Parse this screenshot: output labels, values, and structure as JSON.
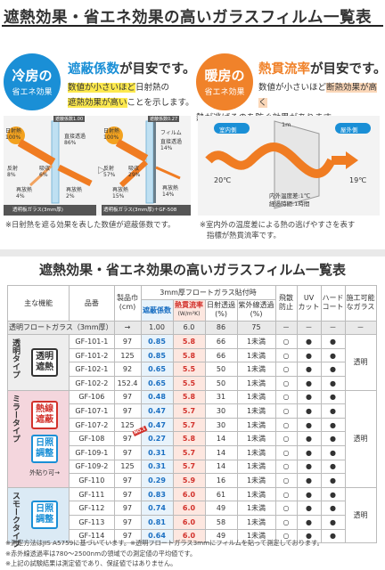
{
  "page_title": "遮熱効果・省エネ効果の高いガラスフィルム一覧表",
  "cooling": {
    "circle_main": "冷房の",
    "circle_sub": "省エネ効果",
    "heading_accent": "遮蔽係数",
    "heading_rest": "が目安です。",
    "line1_a": "数値が小さいほど",
    "line1_b": "日射熱の",
    "line2_a": "遮熱効果が高い",
    "line2_b": "ことを示します。",
    "note": "※日射熱を遮る効果を表した数値が遮蔽係数です。",
    "diagram_left": {
      "label": "遮蔽係数1.00",
      "in": "日射熱\n100%",
      "transmit": "直接透過\n86%",
      "reflect": "反射\n8%",
      "absorb": "吸収\n6%",
      "reradiate_in": "再放熱\n4%",
      "reradiate_out": "再放熱\n2%",
      "caption": "透明板ガラス(3mm厚)"
    },
    "diagram_right": {
      "label": "遮蔽係数0.27",
      "film": "フィルム",
      "in": "日射熱\n100%",
      "transmit": "直接透過\n14%",
      "reflect": "反射\n57%",
      "absorb": "吸収\n29%",
      "reradiate_in": "再放熱\n15%",
      "reradiate_out": "再放熱\n14%",
      "caption": "透明板ガラス(3mm厚)＋GF-508"
    }
  },
  "heating": {
    "circle_main": "暖房の",
    "circle_sub": "省エネ効果",
    "heading_accent": "熱貫流率",
    "heading_rest": "が目安です。",
    "line1_a": "数値が小さいほど",
    "line1_b": "断熱効果が高く",
    "line2": "熱が逃げるのを防ぐ効果があります。",
    "indoor": "室内側",
    "outdoor": "屋外側",
    "dim": "1m",
    "temp_in": "20℃",
    "temp_out": "19℃",
    "diff_line1": "内外温度差:1℃",
    "diff_line2": "経過時間:1時間",
    "note1": "※室内外の温度差による熱の逃げやすさを表す",
    "note2": "指標が熱貫流率です。"
  },
  "table": {
    "title": "遮熱効果・省エネ効果の高いガラスフィルム一覧表",
    "headers": {
      "function": "主な機能",
      "product": "品番",
      "width": "製品巾",
      "width_unit": "(cm)",
      "group": "3mm厚フロートガラス貼付時",
      "shading": "遮蔽係数",
      "u_value": "熱貫流率",
      "u_unit": "(W/m²K)",
      "solar": "日射透過",
      "solar_unit": "(%)",
      "uv": "紫外線透過",
      "uv_unit": "(%)",
      "shatter": "飛散\n防止",
      "uvcut": "UV\nカット",
      "hardcoat": "ハード\nコート",
      "glass": "施工可能\nなガラス"
    },
    "reference": {
      "label": "透明フロートガラス（3mm厚）",
      "arrow": "→",
      "shading": "1.00",
      "u_value": "6.0",
      "solar": "86",
      "uv": "75",
      "shatter": "－",
      "uvcut": "－",
      "hardcoat": "－",
      "glass": "－"
    },
    "groups": [
      {
        "name": "透明タイプ",
        "tags": [
          "透明遮熱"
        ],
        "glass": "透明"
      },
      {
        "name": "ミラータイプ",
        "tags": [
          "熱線遮蔽",
          "日照調整"
        ],
        "outer_note": "外貼り可→",
        "glass": "透明"
      },
      {
        "name": "スモークタイプ",
        "tags": [
          "日照調整"
        ],
        "glass": "透明"
      }
    ],
    "rows": [
      {
        "id": "GF-101-1",
        "w": "97",
        "sc": "0.85",
        "u": "5.8",
        "solar": "66",
        "uv": "1未満",
        "a": "○",
        "b": "●",
        "c": "●"
      },
      {
        "id": "GF-101-2",
        "w": "125",
        "sc": "0.85",
        "u": "5.8",
        "solar": "66",
        "uv": "1未満",
        "a": "○",
        "b": "●",
        "c": "●"
      },
      {
        "id": "GF-102-1",
        "w": "92",
        "sc": "0.65",
        "u": "5.5",
        "solar": "50",
        "uv": "1未満",
        "a": "○",
        "b": "●",
        "c": "●"
      },
      {
        "id": "GF-102-2",
        "w": "152.4",
        "sc": "0.65",
        "u": "5.5",
        "solar": "50",
        "uv": "1未満",
        "a": "○",
        "b": "●",
        "c": "●"
      },
      {
        "id": "GF-106",
        "w": "97",
        "sc": "0.48",
        "u": "5.8",
        "solar": "31",
        "uv": "1未満",
        "a": "○",
        "b": "●",
        "c": "●"
      },
      {
        "id": "GF-107-1",
        "w": "97",
        "sc": "0.47",
        "u": "5.7",
        "solar": "30",
        "uv": "1未満",
        "a": "○",
        "b": "●",
        "c": "●"
      },
      {
        "id": "GF-107-2",
        "w": "125",
        "sc": "0.47",
        "u": "5.7",
        "solar": "30",
        "uv": "1未満",
        "a": "○",
        "b": "●",
        "c": "●"
      },
      {
        "id": "GF-108",
        "w": "97",
        "sc": "0.27",
        "u": "5.8",
        "solar": "14",
        "uv": "1未満",
        "a": "○",
        "b": "●",
        "c": "●",
        "badge": "NO.1"
      },
      {
        "id": "GF-109-1",
        "w": "97",
        "sc": "0.31",
        "u": "5.7",
        "solar": "14",
        "uv": "1未満",
        "a": "○",
        "b": "●",
        "c": "●"
      },
      {
        "id": "GF-109-2",
        "w": "125",
        "sc": "0.31",
        "u": "5.7",
        "solar": "14",
        "uv": "1未満",
        "a": "○",
        "b": "●",
        "c": "●"
      },
      {
        "id": "GF-110",
        "w": "97",
        "sc": "0.29",
        "u": "5.9",
        "solar": "16",
        "uv": "1未満",
        "a": "○",
        "b": "●",
        "c": "●"
      },
      {
        "id": "GF-111",
        "w": "97",
        "sc": "0.83",
        "u": "6.0",
        "solar": "61",
        "uv": "1未満",
        "a": "○",
        "b": "●",
        "c": "●"
      },
      {
        "id": "GF-112",
        "w": "97",
        "sc": "0.74",
        "u": "6.0",
        "solar": "49",
        "uv": "1未満",
        "a": "○",
        "b": "●",
        "c": "●"
      },
      {
        "id": "GF-113",
        "w": "97",
        "sc": "0.81",
        "u": "6.0",
        "solar": "58",
        "uv": "1未満",
        "a": "○",
        "b": "●",
        "c": "●"
      },
      {
        "id": "GF-114",
        "w": "97",
        "sc": "0.64",
        "u": "6.0",
        "solar": "49",
        "uv": "1未満",
        "a": "○",
        "b": "●",
        "c": "●"
      }
    ]
  },
  "footnotes": [
    "※測定方法はJIS A5759に基づいています。※透明フロートガラス3mmにフィルムを貼って測定しております。",
    "※赤外線透過率は780〜2500nmの領域での測定値の平均値です。",
    "※上記の試験結果は測定値であり、保証値ではありません。"
  ],
  "colors": {
    "blue": "#1a8fd6",
    "orange": "#f0822a",
    "mirror_pink": "#f4d6dd",
    "smoke_blue": "#dbeaf5",
    "clear_gray": "#eeeeee"
  }
}
